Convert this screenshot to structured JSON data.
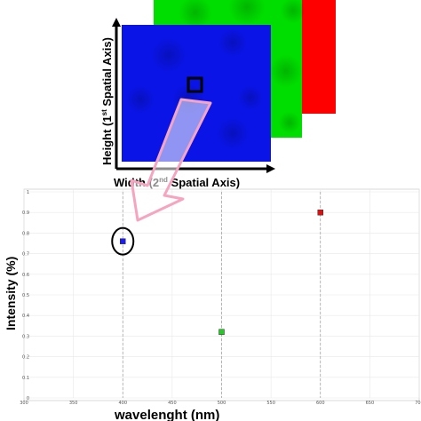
{
  "cube": {
    "height_axis_label": {
      "prefix": "Height (1",
      "sup": "st",
      "suffix": " Spatial Axis)"
    },
    "width_axis_label": {
      "prefix": "Width (2",
      "sup": "nd",
      "suffix": " Spatial Axis)"
    },
    "bands": [
      {
        "name": "red",
        "color": "#ff0000"
      },
      {
        "name": "green",
        "color": "#00dd00"
      },
      {
        "name": "blue",
        "color": "#0a14e6"
      }
    ]
  },
  "chart_data": {
    "type": "scatter",
    "xlabel": "wavelenght (nm)",
    "ylabel": "Intensity (%)",
    "xlim": [
      300,
      700
    ],
    "ylim": [
      0,
      1
    ],
    "x_ticks": [
      300,
      350,
      400,
      450,
      500,
      550,
      600,
      650,
      700
    ],
    "y_ticks": [
      0,
      0.1,
      0.2,
      0.3,
      0.4,
      0.5,
      0.6,
      0.7,
      0.8,
      0.9,
      1
    ],
    "grid": true,
    "points": [
      {
        "x": 400,
        "y": 0.76,
        "color": "#1a1aff"
      },
      {
        "x": 500,
        "y": 0.32,
        "color": "#22cc22"
      },
      {
        "x": 600,
        "y": 0.9,
        "color": "#dd1111"
      }
    ],
    "highlighted_point": 0
  }
}
